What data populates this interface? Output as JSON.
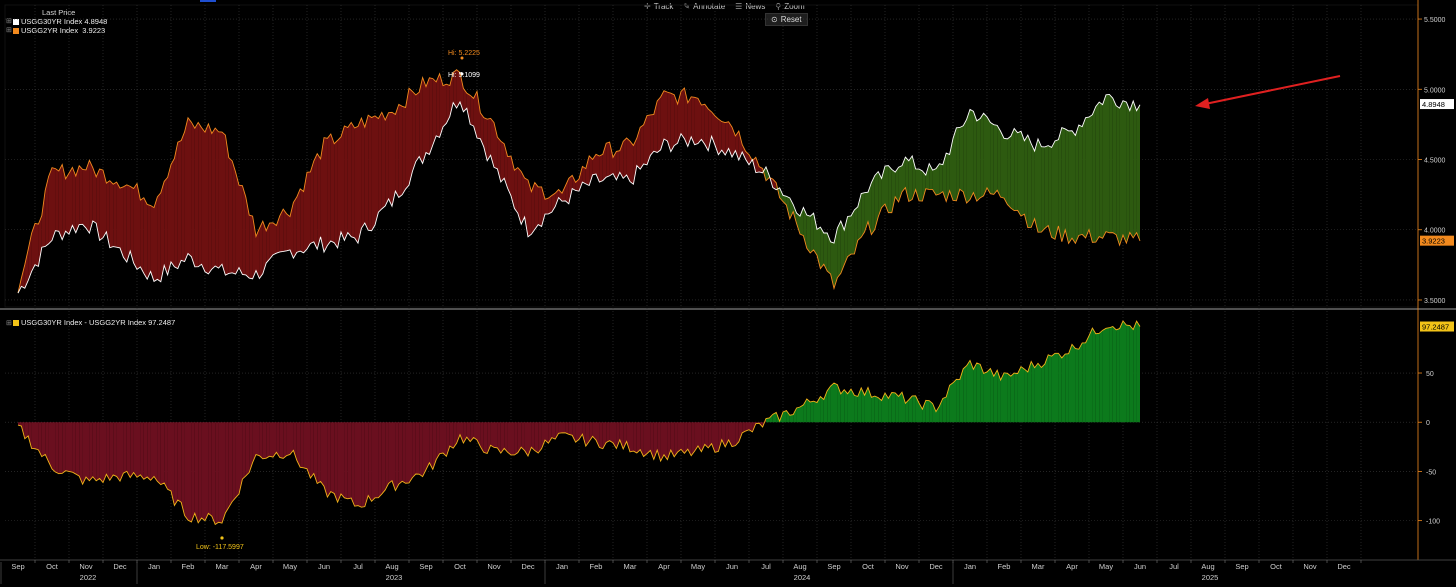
{
  "toolbar": {
    "track": "Track",
    "annotate": "Annotate",
    "news": "News",
    "zoom": "Zoom",
    "reset": "Reset"
  },
  "legend_top": {
    "title": "Last Price",
    "items": [
      {
        "label": "USGG30YR Index 4.8948",
        "color": "#ffffff"
      },
      {
        "label": "USGG2YR Index  3.9223",
        "color": "#f28a1e"
      }
    ]
  },
  "legend_bottom": {
    "label": "USGG30YR Index - USGG2YR Index 97.2487",
    "color": "#f2c318"
  },
  "colors": {
    "inverted_fill": "#6d1010",
    "normal_fill": "#2d5a10",
    "spread_neg_fill": "#6a0f1f",
    "spread_pos_fill": "#0c7a1c",
    "line_30y": "#ffffff",
    "line_2y": "#f28a1e",
    "line_spread": "#f2b318",
    "grid": "#3a3a3a",
    "annotation_arrow": "#e02020"
  },
  "chart_data": [
    {
      "type": "line",
      "name": "yield-levels",
      "x_months": [
        "Sep 2022",
        "Oct",
        "Nov",
        "Dec",
        "Jan 2023",
        "Feb",
        "Mar",
        "Apr",
        "May",
        "Jun",
        "Jul",
        "Aug",
        "Sep",
        "Oct",
        "Nov",
        "Dec",
        "Jan 2024",
        "Feb",
        "Mar",
        "Apr",
        "May",
        "Jun",
        "Jul",
        "Aug",
        "Sep",
        "Oct",
        "Nov",
        "Dec",
        "Jan 2025",
        "Feb",
        "Mar",
        "Apr",
        "May",
        "Jun"
      ],
      "series": [
        {
          "name": "USGG30YR Index",
          "values": [
            3.55,
            3.95,
            4.05,
            3.85,
            3.65,
            3.8,
            3.7,
            3.68,
            3.85,
            3.9,
            3.95,
            4.2,
            4.55,
            4.95,
            4.45,
            4.0,
            4.2,
            4.35,
            4.35,
            4.6,
            4.65,
            4.55,
            4.4,
            4.15,
            3.95,
            4.3,
            4.5,
            4.4,
            4.85,
            4.7,
            4.6,
            4.7,
            4.95,
            4.89
          ]
        },
        {
          "name": "USGG2YR Index",
          "values": [
            3.6,
            4.4,
            4.45,
            4.35,
            4.2,
            4.75,
            4.7,
            4.0,
            4.15,
            4.6,
            4.75,
            4.85,
            5.05,
            5.1,
            4.75,
            4.3,
            4.25,
            4.55,
            4.6,
            4.95,
            4.95,
            4.75,
            4.4,
            4.0,
            3.6,
            4.0,
            4.25,
            4.25,
            4.25,
            4.25,
            4.0,
            3.95,
            3.95,
            3.92
          ]
        }
      ],
      "yticks": [
        "3.5000",
        "4.0000",
        "4.5000",
        "5.0000",
        "5.5000"
      ],
      "ylim": [
        3.45,
        5.6
      ],
      "annotations": [
        {
          "label": "Hi: 5.2225",
          "month_index": 13,
          "value": 5.2225,
          "color": "#f28a1e"
        },
        {
          "label": "Hi: 5.1099",
          "month_index": 13,
          "value": 5.1099,
          "color": "#ffffff"
        }
      ],
      "last_value_tags": [
        {
          "label": "4.8948",
          "value": 4.8948,
          "color": "#ffffff"
        },
        {
          "label": "3.9223",
          "value": 3.9223,
          "color": "#f28a1e"
        }
      ]
    },
    {
      "type": "area",
      "name": "spread",
      "series": [
        {
          "name": "USGG30YR Index - USGG2YR Index",
          "values": [
            -5,
            -45,
            -60,
            -55,
            -55,
            -95,
            -100,
            -35,
            -30,
            -70,
            -85,
            -65,
            -50,
            -15,
            -30,
            -30,
            -15,
            -20,
            -25,
            -35,
            -30,
            -20,
            0,
            15,
            35,
            30,
            25,
            15,
            60,
            45,
            60,
            75,
            100,
            97.2487
          ]
        }
      ],
      "yticks": [
        "-100",
        "-50",
        "0",
        "50"
      ],
      "ylim": [
        -140,
        112
      ],
      "annotations": [
        {
          "label": "Low: -117.5997",
          "month_index": 6,
          "value": -117.5997,
          "color": "#f2c318"
        }
      ],
      "last_value_tags": [
        {
          "label": "97.2487",
          "value": 97.2487,
          "color": "#f2c318"
        }
      ]
    }
  ],
  "x_axis": {
    "month_labels": [
      "Sep",
      "Oct",
      "Nov",
      "Dec",
      "Jan",
      "Feb",
      "Mar",
      "Apr",
      "May",
      "Jun",
      "Jul",
      "Aug",
      "Sep",
      "Oct",
      "Nov",
      "Dec",
      "Jan",
      "Feb",
      "Mar",
      "Apr",
      "May",
      "Jun",
      "Jul",
      "Aug",
      "Sep",
      "Oct",
      "Nov",
      "Dec",
      "Jan",
      "Feb",
      "Mar",
      "Apr",
      "May",
      "Jun",
      "Jul",
      "Aug",
      "Sep",
      "Oct",
      "Nov",
      "Dec"
    ],
    "year_labels": [
      {
        "label": "2022",
        "month_index": 1
      },
      {
        "label": "2023",
        "month_index": 10
      },
      {
        "label": "2024",
        "month_index": 22
      },
      {
        "label": "2025",
        "month_index": 34
      }
    ]
  }
}
